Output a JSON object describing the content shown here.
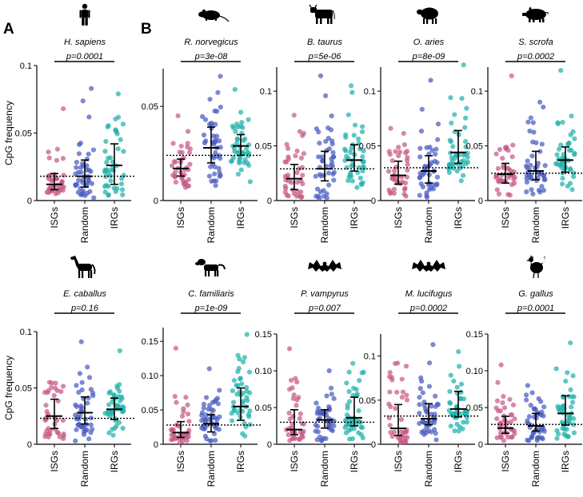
{
  "figure": {
    "panel_labels": [
      "A",
      "B"
    ],
    "y_axis_label": "CpG frequency",
    "categories": [
      "ISGs",
      "Random",
      "IRGs"
    ],
    "colors": {
      "ISGs": "#c65a85",
      "Random": "#4a5bc0",
      "IRGs": "#21b2aa"
    }
  },
  "chart_data": [
    {
      "type": "scatter",
      "species": "H. sapiens",
      "silhouette": "human-icon",
      "pvalue": "p=0.0001",
      "ylim": [
        0,
        0.1
      ],
      "yticks": [
        0,
        0.05,
        0.1
      ],
      "yticklabels": [
        "0",
        "0.05",
        "0.1"
      ],
      "reference_line": 0.018,
      "categories": [
        "ISGs",
        "Random",
        "IRGs"
      ],
      "groups": [
        {
          "name": "ISGs",
          "median": 0.012,
          "q1": 0.008,
          "q3": 0.02,
          "min": 0.005,
          "max": 0.068,
          "n": 40
        },
        {
          "name": "Random",
          "median": 0.018,
          "q1": 0.01,
          "q3": 0.03,
          "min": 0.002,
          "max": 0.083,
          "n": 45
        },
        {
          "name": "IRGs",
          "median": 0.026,
          "q1": 0.012,
          "q3": 0.042,
          "min": 0.004,
          "max": 0.079,
          "n": 45
        }
      ]
    },
    {
      "type": "scatter",
      "species": "R. norvegicus",
      "silhouette": "rat-icon",
      "pvalue": "p=3e-08",
      "ylim": [
        0,
        0.07
      ],
      "yticks": [
        0,
        0.05
      ],
      "yticklabels": [
        "0",
        "0.05"
      ],
      "reference_line": 0.024,
      "categories": [
        "ISGs",
        "Random",
        "IRGs"
      ],
      "groups": [
        {
          "name": "ISGs",
          "median": 0.017,
          "q1": 0.013,
          "q3": 0.022,
          "min": 0.007,
          "max": 0.045,
          "n": 40
        },
        {
          "name": "Random",
          "median": 0.028,
          "q1": 0.02,
          "q3": 0.039,
          "min": 0.008,
          "max": 0.066,
          "n": 45
        },
        {
          "name": "IRGs",
          "median": 0.029,
          "q1": 0.024,
          "q3": 0.035,
          "min": 0.01,
          "max": 0.059,
          "n": 45
        }
      ]
    },
    {
      "type": "scatter",
      "species": "B. taurus",
      "silhouette": "cow-icon",
      "pvalue": "p=5e-06",
      "ylim": [
        0,
        0.122
      ],
      "yticks": [
        0,
        0.05,
        0.1
      ],
      "yticklabels": [
        "0",
        "0.05",
        "0.1"
      ],
      "reference_line": 0.029,
      "categories": [
        "ISGs",
        "Random",
        "IRGs"
      ],
      "groups": [
        {
          "name": "ISGs",
          "median": 0.02,
          "q1": 0.01,
          "q3": 0.033,
          "min": 0.003,
          "max": 0.078,
          "n": 40
        },
        {
          "name": "Random",
          "median": 0.029,
          "q1": 0.018,
          "q3": 0.045,
          "min": 0.002,
          "max": 0.114,
          "n": 45
        },
        {
          "name": "IRGs",
          "median": 0.037,
          "q1": 0.027,
          "q3": 0.051,
          "min": 0.012,
          "max": 0.105,
          "n": 45
        }
      ]
    },
    {
      "type": "scatter",
      "species": "O. aries",
      "silhouette": "sheep-icon",
      "pvalue": "p=8e-09",
      "ylim": [
        0,
        0.122
      ],
      "yticks": [
        0,
        0.05,
        0.1
      ],
      "yticklabels": [
        "0",
        "0.05",
        "0.1"
      ],
      "reference_line": 0.03,
      "categories": [
        "ISGs",
        "Random",
        "IRGs"
      ],
      "groups": [
        {
          "name": "ISGs",
          "median": 0.023,
          "q1": 0.015,
          "q3": 0.036,
          "min": 0.004,
          "max": 0.066,
          "n": 40
        },
        {
          "name": "Random",
          "median": 0.027,
          "q1": 0.016,
          "q3": 0.041,
          "min": 0.003,
          "max": 0.11,
          "n": 45
        },
        {
          "name": "IRGs",
          "median": 0.044,
          "q1": 0.034,
          "q3": 0.064,
          "min": 0.018,
          "max": 0.124,
          "n": 45
        }
      ]
    },
    {
      "type": "scatter",
      "species": "S. scrofa",
      "silhouette": "pig-icon",
      "pvalue": "p=0.0002",
      "ylim": [
        0,
        0.122
      ],
      "yticks": [
        0,
        0.05,
        0.1
      ],
      "yticklabels": [
        "0",
        "0.05",
        "0.1"
      ],
      "reference_line": 0.025,
      "categories": [
        "ISGs",
        "Random",
        "IRGs"
      ],
      "groups": [
        {
          "name": "ISGs",
          "median": 0.024,
          "q1": 0.016,
          "q3": 0.034,
          "min": 0.005,
          "max": 0.114,
          "n": 40
        },
        {
          "name": "Random",
          "median": 0.027,
          "q1": 0.019,
          "q3": 0.045,
          "min": 0.006,
          "max": 0.09,
          "n": 45
        },
        {
          "name": "IRGs",
          "median": 0.037,
          "q1": 0.026,
          "q3": 0.049,
          "min": 0.01,
          "max": 0.119,
          "n": 45
        }
      ]
    },
    {
      "type": "scatter",
      "species": "E. caballus",
      "silhouette": "horse-icon",
      "pvalue": "p=0.16",
      "ylim": [
        0,
        0.1
      ],
      "yticks": [
        0,
        0.05,
        0.1
      ],
      "yticklabels": [
        "0",
        "0.05",
        "0.1"
      ],
      "reference_line": 0.023,
      "categories": [
        "ISGs",
        "Random",
        "IRGs"
      ],
      "groups": [
        {
          "name": "ISGs",
          "median": 0.025,
          "q1": 0.014,
          "q3": 0.04,
          "min": 0.005,
          "max": 0.055,
          "n": 40
        },
        {
          "name": "Random",
          "median": 0.028,
          "q1": 0.018,
          "q3": 0.042,
          "min": 0.003,
          "max": 0.091,
          "n": 45
        },
        {
          "name": "IRGs",
          "median": 0.031,
          "q1": 0.022,
          "q3": 0.041,
          "min": 0.008,
          "max": 0.083,
          "n": 45
        }
      ]
    },
    {
      "type": "scatter",
      "species": "C. familiaris",
      "silhouette": "dog-icon",
      "pvalue": "p=1e-09",
      "ylim": [
        0,
        0.17
      ],
      "yticks": [
        0,
        0.05,
        0.1,
        0.15
      ],
      "yticklabels": [
        "0",
        "0.05",
        "0.10",
        "0.15"
      ],
      "reference_line": 0.028,
      "categories": [
        "ISGs",
        "Random",
        "IRGs"
      ],
      "groups": [
        {
          "name": "ISGs",
          "median": 0.017,
          "q1": 0.01,
          "q3": 0.033,
          "min": 0.003,
          "max": 0.14,
          "n": 40
        },
        {
          "name": "Random",
          "median": 0.03,
          "q1": 0.018,
          "q3": 0.043,
          "min": 0.005,
          "max": 0.11,
          "n": 45
        },
        {
          "name": "IRGs",
          "median": 0.055,
          "q1": 0.035,
          "q3": 0.082,
          "min": 0.012,
          "max": 0.16,
          "n": 45
        }
      ]
    },
    {
      "type": "scatter",
      "species": "P. vampyrus",
      "silhouette": "fruit-bat-icon",
      "pvalue": "p=0.007",
      "ylim": [
        0,
        0.15
      ],
      "yticks": [
        0,
        0.05,
        0.1,
        0.15
      ],
      "yticklabels": [
        "0",
        "0.05",
        "0.10",
        "0.15"
      ],
      "reference_line": 0.03,
      "categories": [
        "ISGs",
        "Random",
        "IRGs"
      ],
      "groups": [
        {
          "name": "ISGs",
          "median": 0.02,
          "q1": 0.013,
          "q3": 0.047,
          "min": 0.005,
          "max": 0.13,
          "n": 40
        },
        {
          "name": "Random",
          "median": 0.033,
          "q1": 0.022,
          "q3": 0.047,
          "min": 0.005,
          "max": 0.1,
          "n": 45
        },
        {
          "name": "IRGs",
          "median": 0.036,
          "q1": 0.025,
          "q3": 0.064,
          "min": 0.007,
          "max": 0.11,
          "n": 45
        }
      ]
    },
    {
      "type": "scatter",
      "species": "M. lucifugus",
      "silhouette": "little-brown-bat-icon",
      "pvalue": "p=0.0002",
      "ylim": [
        0,
        0.125
      ],
      "yticks": [
        0,
        0.05,
        0.1
      ],
      "yticklabels": [
        "0",
        "0.05",
        "0.1"
      ],
      "reference_line": 0.032,
      "categories": [
        "ISGs",
        "Random",
        "IRGs"
      ],
      "groups": [
        {
          "name": "ISGs",
          "median": 0.018,
          "q1": 0.01,
          "q3": 0.045,
          "min": 0.002,
          "max": 0.092,
          "n": 40
        },
        {
          "name": "Random",
          "median": 0.029,
          "q1": 0.022,
          "q3": 0.046,
          "min": 0.005,
          "max": 0.113,
          "n": 45
        },
        {
          "name": "IRGs",
          "median": 0.04,
          "q1": 0.031,
          "q3": 0.06,
          "min": 0.015,
          "max": 0.105,
          "n": 45
        }
      ]
    },
    {
      "type": "scatter",
      "species": "G. gallus",
      "silhouette": "chicken-icon",
      "pvalue": "p=0.0001",
      "ylim": [
        0,
        0.15
      ],
      "yticks": [
        0,
        0.05,
        0.1,
        0.15
      ],
      "yticklabels": [
        "0",
        "0.05",
        "0.10",
        "0.15"
      ],
      "reference_line": 0.027,
      "categories": [
        "ISGs",
        "Random",
        "IRGs"
      ],
      "groups": [
        {
          "name": "ISGs",
          "median": 0.022,
          "q1": 0.015,
          "q3": 0.038,
          "min": 0.005,
          "max": 0.108,
          "n": 40
        },
        {
          "name": "Random",
          "median": 0.025,
          "q1": 0.018,
          "q3": 0.042,
          "min": 0.005,
          "max": 0.08,
          "n": 45
        },
        {
          "name": "IRGs",
          "median": 0.042,
          "q1": 0.026,
          "q3": 0.066,
          "min": 0.008,
          "max": 0.138,
          "n": 45
        }
      ]
    }
  ]
}
